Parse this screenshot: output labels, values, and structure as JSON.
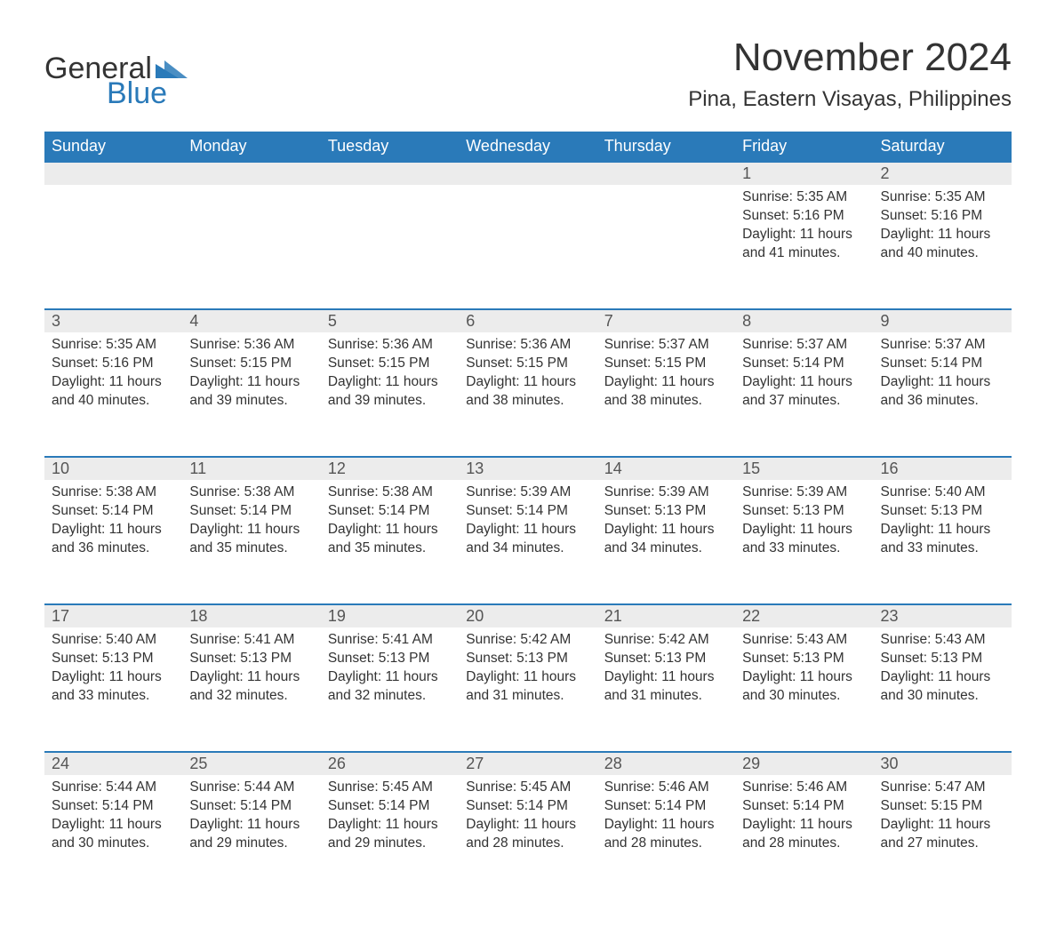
{
  "logo": {
    "word1": "General",
    "word2": "Blue",
    "icon_color": "#2a7ab9"
  },
  "title": "November 2024",
  "location": "Pina, Eastern Visayas, Philippines",
  "colors": {
    "header_bg": "#2a7ab9",
    "header_text": "#ffffff",
    "daynum_bg": "#ececec",
    "daynum_border": "#2a7ab9",
    "text": "#333333",
    "logo_blue": "#2a7ab9"
  },
  "fonts": {
    "title_size_pt": 33,
    "location_size_pt": 18,
    "header_size_pt": 14,
    "daynum_size_pt": 14,
    "body_size_pt": 12
  },
  "weekdays": [
    "Sunday",
    "Monday",
    "Tuesday",
    "Wednesday",
    "Thursday",
    "Friday",
    "Saturday"
  ],
  "weeks": [
    {
      "daynums": [
        "",
        "",
        "",
        "",
        "",
        "1",
        "2"
      ],
      "cells": [
        null,
        null,
        null,
        null,
        null,
        {
          "sunrise": "Sunrise: 5:35 AM",
          "sunset": "Sunset: 5:16 PM",
          "daylight1": "Daylight: 11 hours",
          "daylight2": "and 41 minutes."
        },
        {
          "sunrise": "Sunrise: 5:35 AM",
          "sunset": "Sunset: 5:16 PM",
          "daylight1": "Daylight: 11 hours",
          "daylight2": "and 40 minutes."
        }
      ]
    },
    {
      "daynums": [
        "3",
        "4",
        "5",
        "6",
        "7",
        "8",
        "9"
      ],
      "cells": [
        {
          "sunrise": "Sunrise: 5:35 AM",
          "sunset": "Sunset: 5:16 PM",
          "daylight1": "Daylight: 11 hours",
          "daylight2": "and 40 minutes."
        },
        {
          "sunrise": "Sunrise: 5:36 AM",
          "sunset": "Sunset: 5:15 PM",
          "daylight1": "Daylight: 11 hours",
          "daylight2": "and 39 minutes."
        },
        {
          "sunrise": "Sunrise: 5:36 AM",
          "sunset": "Sunset: 5:15 PM",
          "daylight1": "Daylight: 11 hours",
          "daylight2": "and 39 minutes."
        },
        {
          "sunrise": "Sunrise: 5:36 AM",
          "sunset": "Sunset: 5:15 PM",
          "daylight1": "Daylight: 11 hours",
          "daylight2": "and 38 minutes."
        },
        {
          "sunrise": "Sunrise: 5:37 AM",
          "sunset": "Sunset: 5:15 PM",
          "daylight1": "Daylight: 11 hours",
          "daylight2": "and 38 minutes."
        },
        {
          "sunrise": "Sunrise: 5:37 AM",
          "sunset": "Sunset: 5:14 PM",
          "daylight1": "Daylight: 11 hours",
          "daylight2": "and 37 minutes."
        },
        {
          "sunrise": "Sunrise: 5:37 AM",
          "sunset": "Sunset: 5:14 PM",
          "daylight1": "Daylight: 11 hours",
          "daylight2": "and 36 minutes."
        }
      ]
    },
    {
      "daynums": [
        "10",
        "11",
        "12",
        "13",
        "14",
        "15",
        "16"
      ],
      "cells": [
        {
          "sunrise": "Sunrise: 5:38 AM",
          "sunset": "Sunset: 5:14 PM",
          "daylight1": "Daylight: 11 hours",
          "daylight2": "and 36 minutes."
        },
        {
          "sunrise": "Sunrise: 5:38 AM",
          "sunset": "Sunset: 5:14 PM",
          "daylight1": "Daylight: 11 hours",
          "daylight2": "and 35 minutes."
        },
        {
          "sunrise": "Sunrise: 5:38 AM",
          "sunset": "Sunset: 5:14 PM",
          "daylight1": "Daylight: 11 hours",
          "daylight2": "and 35 minutes."
        },
        {
          "sunrise": "Sunrise: 5:39 AM",
          "sunset": "Sunset: 5:14 PM",
          "daylight1": "Daylight: 11 hours",
          "daylight2": "and 34 minutes."
        },
        {
          "sunrise": "Sunrise: 5:39 AM",
          "sunset": "Sunset: 5:13 PM",
          "daylight1": "Daylight: 11 hours",
          "daylight2": "and 34 minutes."
        },
        {
          "sunrise": "Sunrise: 5:39 AM",
          "sunset": "Sunset: 5:13 PM",
          "daylight1": "Daylight: 11 hours",
          "daylight2": "and 33 minutes."
        },
        {
          "sunrise": "Sunrise: 5:40 AM",
          "sunset": "Sunset: 5:13 PM",
          "daylight1": "Daylight: 11 hours",
          "daylight2": "and 33 minutes."
        }
      ]
    },
    {
      "daynums": [
        "17",
        "18",
        "19",
        "20",
        "21",
        "22",
        "23"
      ],
      "cells": [
        {
          "sunrise": "Sunrise: 5:40 AM",
          "sunset": "Sunset: 5:13 PM",
          "daylight1": "Daylight: 11 hours",
          "daylight2": "and 33 minutes."
        },
        {
          "sunrise": "Sunrise: 5:41 AM",
          "sunset": "Sunset: 5:13 PM",
          "daylight1": "Daylight: 11 hours",
          "daylight2": "and 32 minutes."
        },
        {
          "sunrise": "Sunrise: 5:41 AM",
          "sunset": "Sunset: 5:13 PM",
          "daylight1": "Daylight: 11 hours",
          "daylight2": "and 32 minutes."
        },
        {
          "sunrise": "Sunrise: 5:42 AM",
          "sunset": "Sunset: 5:13 PM",
          "daylight1": "Daylight: 11 hours",
          "daylight2": "and 31 minutes."
        },
        {
          "sunrise": "Sunrise: 5:42 AM",
          "sunset": "Sunset: 5:13 PM",
          "daylight1": "Daylight: 11 hours",
          "daylight2": "and 31 minutes."
        },
        {
          "sunrise": "Sunrise: 5:43 AM",
          "sunset": "Sunset: 5:13 PM",
          "daylight1": "Daylight: 11 hours",
          "daylight2": "and 30 minutes."
        },
        {
          "sunrise": "Sunrise: 5:43 AM",
          "sunset": "Sunset: 5:13 PM",
          "daylight1": "Daylight: 11 hours",
          "daylight2": "and 30 minutes."
        }
      ]
    },
    {
      "daynums": [
        "24",
        "25",
        "26",
        "27",
        "28",
        "29",
        "30"
      ],
      "cells": [
        {
          "sunrise": "Sunrise: 5:44 AM",
          "sunset": "Sunset: 5:14 PM",
          "daylight1": "Daylight: 11 hours",
          "daylight2": "and 30 minutes."
        },
        {
          "sunrise": "Sunrise: 5:44 AM",
          "sunset": "Sunset: 5:14 PM",
          "daylight1": "Daylight: 11 hours",
          "daylight2": "and 29 minutes."
        },
        {
          "sunrise": "Sunrise: 5:45 AM",
          "sunset": "Sunset: 5:14 PM",
          "daylight1": "Daylight: 11 hours",
          "daylight2": "and 29 minutes."
        },
        {
          "sunrise": "Sunrise: 5:45 AM",
          "sunset": "Sunset: 5:14 PM",
          "daylight1": "Daylight: 11 hours",
          "daylight2": "and 28 minutes."
        },
        {
          "sunrise": "Sunrise: 5:46 AM",
          "sunset": "Sunset: 5:14 PM",
          "daylight1": "Daylight: 11 hours",
          "daylight2": "and 28 minutes."
        },
        {
          "sunrise": "Sunrise: 5:46 AM",
          "sunset": "Sunset: 5:14 PM",
          "daylight1": "Daylight: 11 hours",
          "daylight2": "and 28 minutes."
        },
        {
          "sunrise": "Sunrise: 5:47 AM",
          "sunset": "Sunset: 5:15 PM",
          "daylight1": "Daylight: 11 hours",
          "daylight2": "and 27 minutes."
        }
      ]
    }
  ]
}
